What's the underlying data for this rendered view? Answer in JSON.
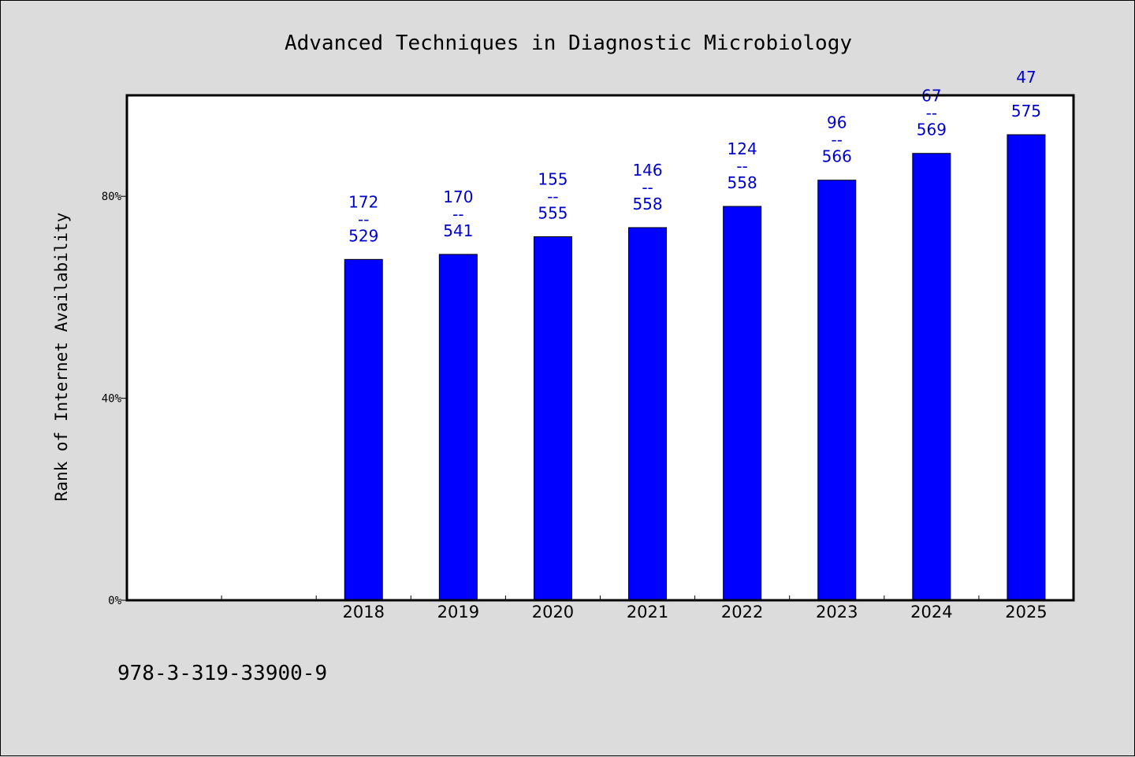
{
  "chart_data": {
    "type": "bar",
    "title": "Advanced Techniques in Diagnostic Microbiology",
    "ylabel": "Rank of Internet Availability",
    "xlabel": "",
    "categories": [
      "2018",
      "2019",
      "2020",
      "2021",
      "2022",
      "2023",
      "2024",
      "2025"
    ],
    "series": [
      {
        "values": [
          67.5,
          68.5,
          72.0,
          73.8,
          78.0,
          83.2,
          88.5,
          92.2
        ],
        "color": "#0000ff",
        "labels_top": [
          "172",
          "170",
          "155",
          "146",
          "124",
          "96",
          "67",
          "47"
        ],
        "labels_bottom": [
          "529",
          "541",
          "555",
          "558",
          "558",
          "566",
          "569",
          "575"
        ]
      }
    ],
    "label_separator": "--",
    "ylim": [
      0,
      100
    ],
    "yticks": [
      0,
      40,
      80
    ],
    "ytick_labels": [
      "0%",
      "40%",
      "80%"
    ],
    "grid": false,
    "legend": "none"
  },
  "footer": "978-3-319-33900-9"
}
